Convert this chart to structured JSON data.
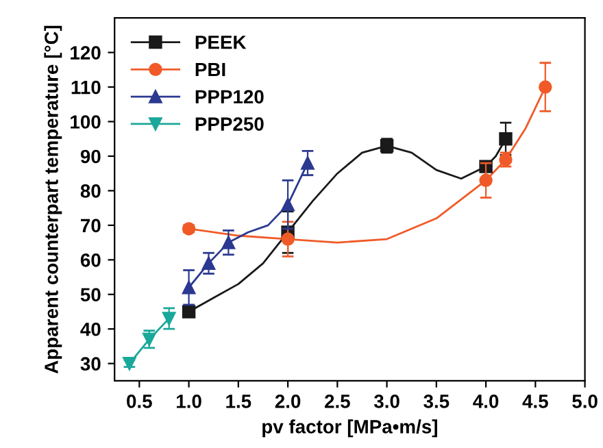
{
  "chart_data": {
    "type": "scatter",
    "xlabel": "pv factor [MPa•m/s]",
    "ylabel": "Apparent counterpart temperature [°C]",
    "xlim": [
      0.25,
      5.0
    ],
    "xticks": [
      {
        "value": 0.5,
        "label": "0.5"
      },
      {
        "value": 1.0,
        "label": "1.0"
      },
      {
        "value": 1.5,
        "label": "1.5"
      },
      {
        "value": 2.0,
        "label": "2.0"
      },
      {
        "value": 2.5,
        "label": "2.5"
      },
      {
        "value": 3.0,
        "label": "3.0"
      },
      {
        "value": 3.5,
        "label": "3.5"
      },
      {
        "value": 4.0,
        "label": "4.0"
      },
      {
        "value": 4.5,
        "label": "4.5"
      },
      {
        "value": 5.0,
        "label": "5.0"
      }
    ],
    "ylim": [
      25,
      130
    ],
    "yticks": [
      30,
      40,
      50,
      60,
      70,
      80,
      90,
      100,
      110,
      120
    ],
    "grid": false,
    "legend": "top left",
    "series": [
      {
        "type": "line",
        "color": "#1a1a1a",
        "x": [
          1.0,
          1.25,
          1.5,
          1.75,
          2.0,
          2.25,
          2.5,
          2.75,
          3.0,
          3.25,
          3.5,
          3.75,
          4.0,
          4.1,
          4.2
        ],
        "values": [
          45,
          49,
          53,
          59,
          68,
          77,
          85,
          91,
          93,
          91,
          86,
          83.5,
          87,
          90,
          95
        ]
      },
      {
        "type": "line",
        "color": "#f05a28",
        "x": [
          1.0,
          1.5,
          2.0,
          2.5,
          3.0,
          3.5,
          4.0,
          4.2,
          4.4,
          4.6
        ],
        "values": [
          69,
          67,
          66,
          65,
          66,
          72,
          83,
          89,
          98,
          110
        ]
      },
      {
        "type": "line",
        "color": "#2b3990",
        "x": [
          1.0,
          1.2,
          1.4,
          1.6,
          1.8,
          2.0,
          2.1,
          2.2
        ],
        "values": [
          52,
          59,
          65,
          68,
          70,
          76,
          82,
          88
        ]
      },
      {
        "type": "line",
        "color": "#1aa89a",
        "x": [
          0.4,
          0.6,
          0.8
        ],
        "values": [
          30,
          37,
          43
        ]
      },
      {
        "name": "PEEK",
        "color": "#1a1a1a",
        "marker": "square",
        "x": [
          1.0,
          2.0,
          3.0,
          4.0,
          4.2
        ],
        "values": [
          45,
          68,
          93,
          87,
          95
        ],
        "errors": [
          null,
          6,
          2,
          1.5,
          4.7
        ]
      },
      {
        "name": "PBI",
        "color": "#f05a28",
        "marker": "circle",
        "x": [
          1.0,
          2.0,
          4.0,
          4.2,
          4.6
        ],
        "values": [
          69,
          66,
          83,
          89,
          110
        ],
        "errors": [
          1,
          5,
          5,
          2,
          7
        ]
      },
      {
        "name": "PPP120",
        "color": "#2b3990",
        "marker": "triangle",
        "x": [
          1.0,
          1.2,
          1.4,
          2.0,
          2.2
        ],
        "values": [
          52,
          59,
          65,
          76,
          88
        ],
        "errors": [
          5,
          3,
          3.5,
          7,
          3.5
        ]
      },
      {
        "name": "PPP250",
        "color": "#1aa89a",
        "marker": "triangle_down",
        "x": [
          0.4,
          0.6,
          0.8
        ],
        "values": [
          30,
          37,
          43
        ],
        "errors": [
          1,
          2.5,
          3
        ]
      }
    ]
  }
}
